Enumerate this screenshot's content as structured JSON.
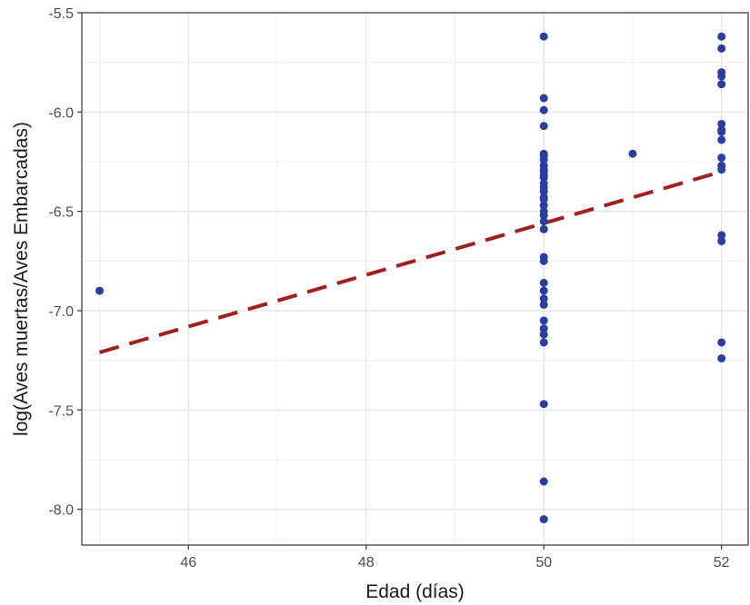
{
  "chart_data": {
    "type": "scatter",
    "title": "",
    "xlabel": "Edad (días)",
    "ylabel": "log(Aves muertas/Aves Embarcadas)",
    "xlim": [
      44.8,
      52.3
    ],
    "ylim": [
      -8.18,
      -5.5
    ],
    "x_ticks": [
      46,
      48,
      50,
      52
    ],
    "x_tick_labels": [
      "46",
      "48",
      "50",
      "52"
    ],
    "y_ticks": [
      -8.0,
      -7.5,
      -7.0,
      -6.5,
      -6.0,
      -5.5
    ],
    "y_tick_labels": [
      "-8.0",
      "-7.5",
      "-7.0",
      "-6.5",
      "-6.0",
      "-5.5"
    ],
    "grid": true,
    "points": {
      "color": "#2b3ea0",
      "x": [
        45,
        50,
        50,
        50,
        50,
        50,
        50,
        50,
        50,
        50,
        50,
        50,
        50,
        50,
        50,
        50,
        50,
        50,
        50,
        50,
        50,
        50,
        50,
        50,
        50,
        50,
        50,
        50,
        50,
        50,
        50,
        50,
        50,
        50,
        50,
        50,
        51,
        52,
        52,
        52,
        52,
        52,
        52,
        52,
        52,
        52,
        52,
        52,
        52,
        52,
        52,
        52,
        52
      ],
      "y": [
        -6.9,
        -5.62,
        -5.93,
        -5.99,
        -6.07,
        -6.21,
        -6.24,
        -6.27,
        -6.3,
        -6.33,
        -6.36,
        -6.4,
        -6.43,
        -6.47,
        -6.5,
        -6.55,
        -6.59,
        -6.73,
        -6.75,
        -6.86,
        -6.9,
        -6.94,
        -6.97,
        -7.05,
        -7.09,
        -7.12,
        -7.16,
        -7.47,
        -7.86,
        -8.05,
        -6.22,
        -6.29,
        -6.32,
        -6.38,
        -6.44,
        -6.52,
        -6.21,
        -5.62,
        -5.68,
        -5.8,
        -5.86,
        -6.06,
        -6.09,
        -6.14,
        -6.23,
        -6.27,
        -6.29,
        -6.62,
        -6.65,
        -7.16,
        -7.24,
        -5.82,
        -6.1
      ]
    },
    "fit_line": {
      "color": "#a31f1f",
      "style": "dashed",
      "x": [
        45,
        52
      ],
      "y": [
        -7.21,
        -6.3
      ]
    }
  }
}
